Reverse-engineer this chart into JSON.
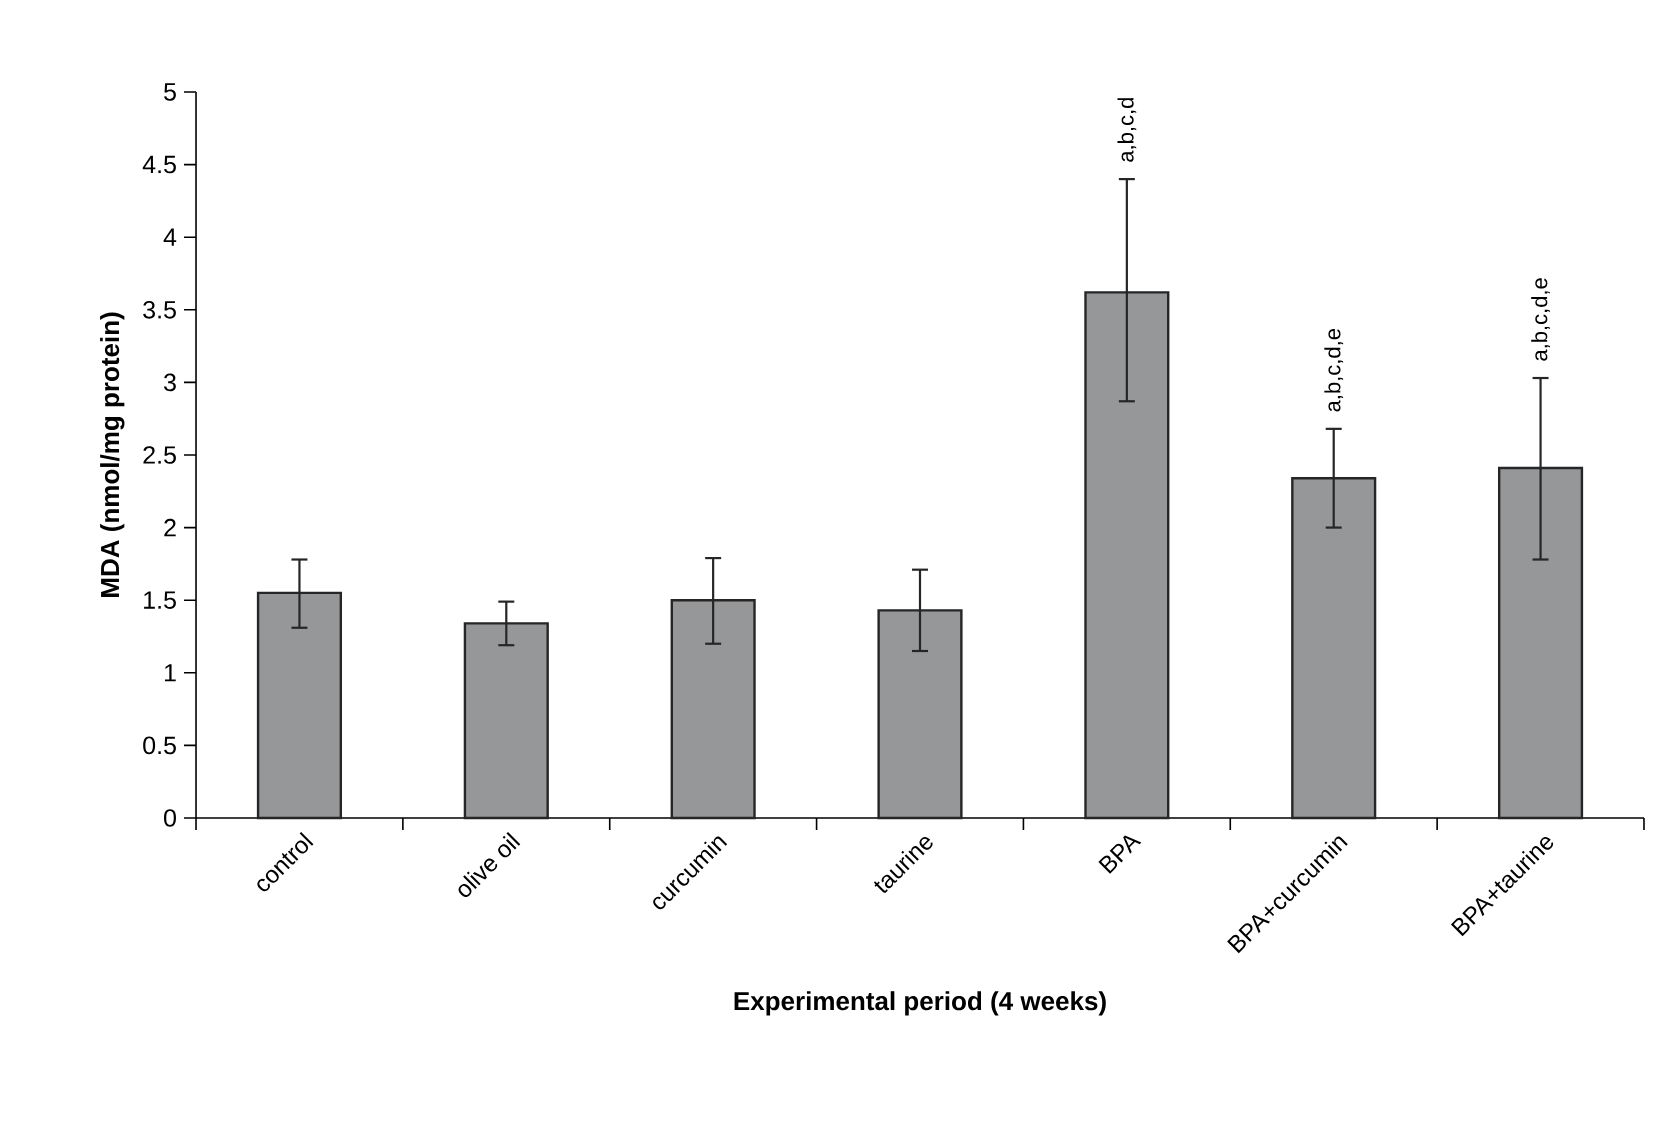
{
  "chart_data": {
    "type": "bar",
    "xlabel": "Experimental period (4 weeks)",
    "ylabel": "MDA (nmol/mg protein)",
    "categories": [
      "control",
      "olive oil",
      "curcumin",
      "taurine",
      "BPA",
      "BPA+curcumin",
      "BPA+taurine"
    ],
    "values": [
      1.55,
      1.34,
      1.5,
      1.43,
      3.62,
      2.34,
      2.41
    ],
    "errors": [
      [
        1.31,
        1.78
      ],
      [
        1.19,
        1.49
      ],
      [
        1.2,
        1.79
      ],
      [
        1.15,
        1.71
      ],
      [
        2.87,
        4.4
      ],
      [
        2.0,
        2.68
      ],
      [
        1.78,
        3.03
      ]
    ],
    "color": "#969799",
    "ylim": [
      0,
      5
    ],
    "yticks": [
      0,
      0.5,
      1,
      1.5,
      2,
      2.5,
      3,
      3.5,
      4,
      4.5,
      5
    ],
    "grid": false,
    "annotations": [
      {
        "text": "a,b,c,d",
        "x": "BPA",
        "y": 4.4
      },
      {
        "text": "a,b,c,d,e",
        "x": "BPA+curcumin",
        "y": 2.68
      },
      {
        "text": "a,b,c,d,e",
        "x": "BPA+taurine",
        "y": 3.03
      }
    ]
  }
}
